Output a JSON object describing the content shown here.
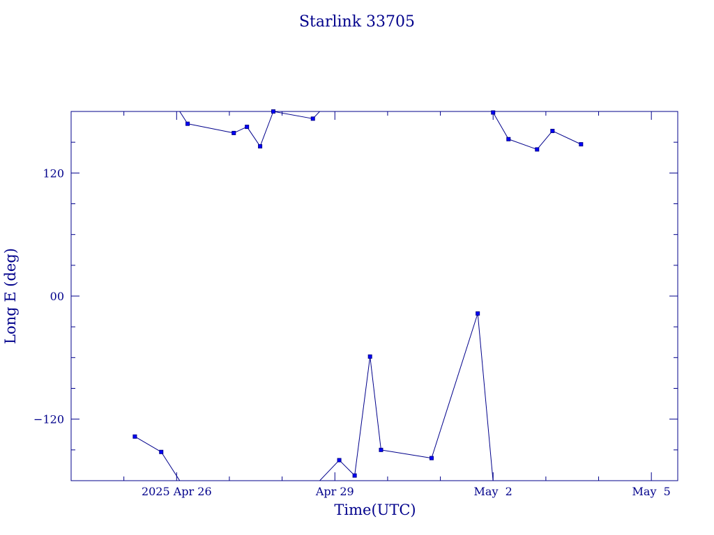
{
  "chart_data": {
    "type": "line",
    "title": "Starlink 33705",
    "xlabel": "Time(UTC)",
    "ylabel": "Long E (deg)",
    "x_ticks": [
      {
        "x": "2025-04-26",
        "label": "2025 Apr 26"
      },
      {
        "x": "2025-04-29",
        "label": "Apr 29"
      },
      {
        "x": "2025-05-02",
        "label": "May  2"
      },
      {
        "x": "2025-05-05",
        "label": "May  5"
      }
    ],
    "y_ticks": [
      {
        "y": -120,
        "label": "−120"
      },
      {
        "y": 0,
        "label": "00"
      },
      {
        "y": 120,
        "label": "120"
      }
    ],
    "xlim": [
      "2025-04-24T00:00",
      "2025-05-05T12:00"
    ],
    "ylim": [
      -180,
      180
    ],
    "grid": false,
    "series": [
      {
        "color": "#00008b",
        "points": [
          {
            "x": "2025-04-25T05:00",
            "y": -137
          },
          {
            "x": "2025-04-25T17:00",
            "y": -152
          },
          {
            "x": "2025-04-26T05:00",
            "y": 168
          },
          {
            "x": "2025-04-27T02:00",
            "y": 159
          },
          {
            "x": "2025-04-27T08:00",
            "y": 165
          },
          {
            "x": "2025-04-27T14:00",
            "y": 146
          },
          {
            "x": "2025-04-27T20:00",
            "y": 180
          },
          {
            "x": "2025-04-28T14:00",
            "y": 173
          },
          {
            "x": "2025-04-29T02:00",
            "y": -160
          },
          {
            "x": "2025-04-29T09:00",
            "y": -175
          },
          {
            "x": "2025-04-29T16:00",
            "y": -59
          },
          {
            "x": "2025-04-29T21:00",
            "y": -150
          },
          {
            "x": "2025-04-30T20:00",
            "y": -158
          },
          {
            "x": "2025-05-01T17:00",
            "y": -17
          },
          {
            "x": "2025-05-02T00:00",
            "y": 179
          },
          {
            "x": "2025-05-02T07:00",
            "y": 153
          },
          {
            "x": "2025-05-02T20:00",
            "y": 143
          },
          {
            "x": "2025-05-03T03:00",
            "y": 161
          },
          {
            "x": "2025-05-03T16:00",
            "y": 148
          }
        ]
      }
    ]
  }
}
